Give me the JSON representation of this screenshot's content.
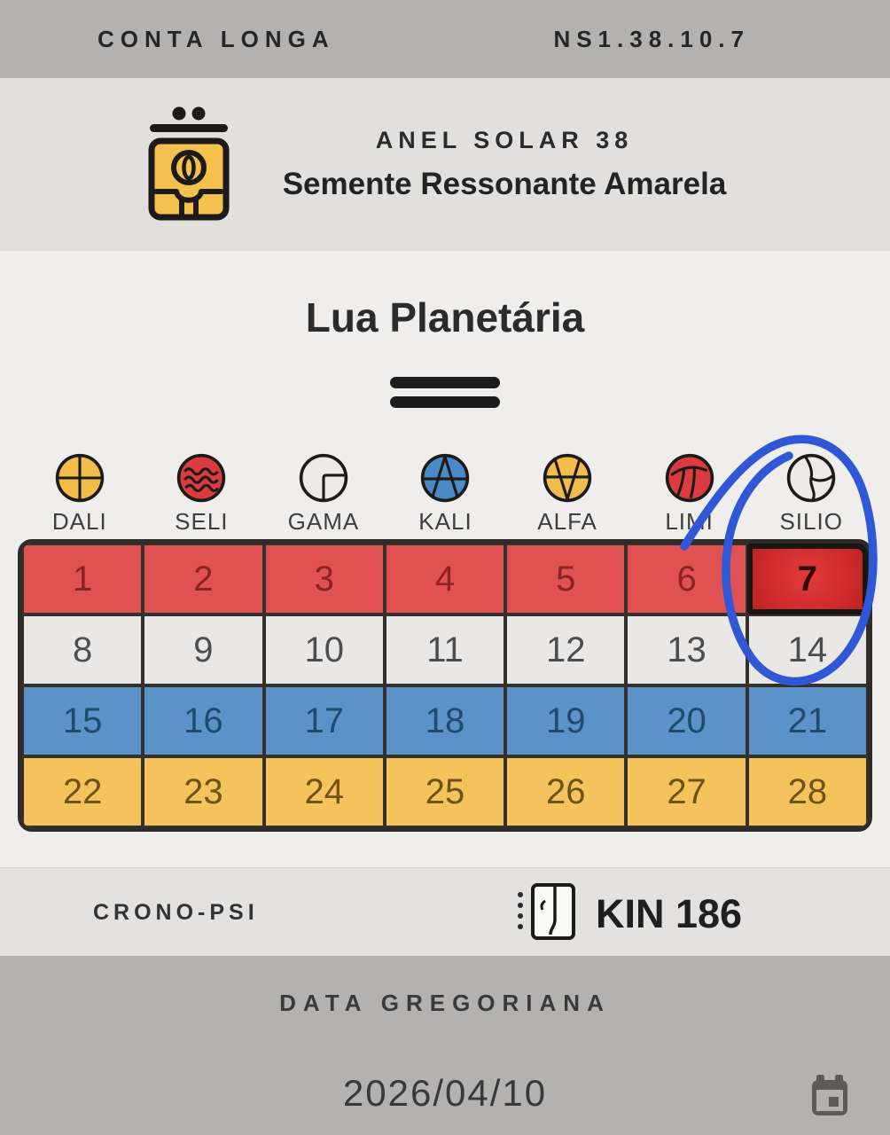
{
  "top_bar": {
    "title": "CONTA LONGA",
    "long_count": "NS1.38.10.7"
  },
  "solar_ring": {
    "ring_label": "ANEL SOLAR 38",
    "year_name": "Semente Ressonante Amarela",
    "seal_icon": "yellow-seed-glyph",
    "tone_icon": "tone-7-two-dots-over-bar"
  },
  "moon": {
    "title": "Lua Planetária",
    "tone_bars_count": 2
  },
  "plasmas": [
    {
      "label": "DALI",
      "icon": "dali-cross-circle",
      "color": "#F2BC4A"
    },
    {
      "label": "SELI",
      "icon": "seli-waves-circle",
      "color": "#D93B3E"
    },
    {
      "label": "GAMA",
      "icon": "gama-corner-circle",
      "color": "#ECEBE9"
    },
    {
      "label": "KALI",
      "icon": "kali-a-circle",
      "color": "#4A8AC7"
    },
    {
      "label": "ALFA",
      "icon": "alfa-v-circle",
      "color": "#F2BC4A"
    },
    {
      "label": "LIMI",
      "icon": "limi-curves-circle",
      "color": "#D93B3E"
    },
    {
      "label": "SILIO",
      "icon": "silio-triskel-circle",
      "color": "#ECEBE9"
    }
  ],
  "calendar": {
    "selected_day": 7,
    "rows": [
      {
        "color": "#E05151",
        "days": [
          1,
          2,
          3,
          4,
          5,
          6,
          7
        ]
      },
      {
        "color": "#E9E8E6",
        "days": [
          8,
          9,
          10,
          11,
          12,
          13,
          14
        ]
      },
      {
        "color": "#5B92C8",
        "days": [
          15,
          16,
          17,
          18,
          19,
          20,
          21
        ]
      },
      {
        "color": "#F4C35C",
        "days": [
          22,
          23,
          24,
          25,
          26,
          27,
          28
        ]
      }
    ]
  },
  "crono_psi": {
    "label": "CRONO-PSI",
    "kin": "KIN 186"
  },
  "gregorian": {
    "label": "DATA GREGORIANA",
    "date": "2026/04/10"
  },
  "annotation": {
    "type": "hand-drawn-circle",
    "color": "#2F57D6",
    "highlights": "SILIO / day 7"
  }
}
